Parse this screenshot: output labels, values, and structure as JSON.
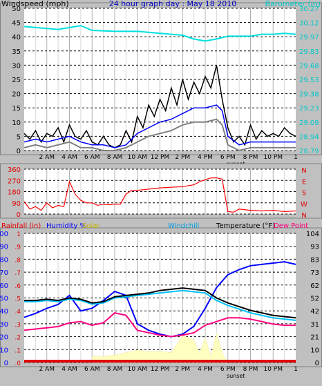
{
  "chart_data": [
    {
      "type": "line",
      "title": "24 hour graph day : May 18 2010",
      "ylabel": "Windspeed (mph)",
      "y2label": "Barometer (in)",
      "x_ticks": [
        "2 AM",
        "4 AM",
        "6 AM",
        "8 AM",
        "10 AM",
        "12 PM",
        "2 PM",
        "4 PM",
        "6 PM",
        "8 PM",
        "10 PM"
      ],
      "x_hour_range": [
        0,
        24
      ],
      "x_end_label": "1",
      "sunset_label": "sunset",
      "ylim": [
        0,
        50
      ],
      "yticks": [
        "0",
        "5",
        "10",
        "15",
        "20",
        "25",
        "30",
        "35",
        "40",
        "45",
        "50"
      ],
      "y2ticks": [
        "28.79",
        "28.94",
        "29.09",
        "29.23",
        "29.38",
        "29.53",
        "29.68",
        "29.83",
        "29.97",
        "30.12",
        "30.27"
      ],
      "series": [
        {
          "name": "Barometer (in)",
          "color": "#00e0e0",
          "axis": "right",
          "x": [
            0,
            2,
            3,
            5,
            6,
            8,
            10,
            12,
            14,
            15,
            16,
            17,
            18,
            19,
            20,
            21,
            22,
            23,
            24
          ],
          "values": [
            30.08,
            30.06,
            30.05,
            30.09,
            30.04,
            30.03,
            30.03,
            30.01,
            29.99,
            29.95,
            29.93,
            29.95,
            29.98,
            29.98,
            29.98,
            30.0,
            30.0,
            30.01,
            30.0
          ]
        },
        {
          "name": "Windspeed high",
          "color": "#000000",
          "axis": "left",
          "x": [
            0,
            0.5,
            1,
            1.5,
            2,
            2.5,
            3,
            3.5,
            4,
            4.5,
            5,
            5.5,
            6,
            6.5,
            7,
            7.5,
            8,
            8.5,
            9,
            9.5,
            10,
            10.5,
            11,
            11.5,
            12,
            12.5,
            13,
            13.5,
            14,
            14.5,
            15,
            15.5,
            16,
            16.5,
            17,
            17.5,
            18,
            18.5,
            19,
            19.5,
            20,
            20.5,
            21,
            21.5,
            22,
            22.5,
            23,
            23.5,
            24
          ],
          "values": [
            6,
            4,
            7,
            3,
            6,
            5,
            8,
            3,
            9,
            5,
            4,
            7,
            3,
            2,
            5,
            2,
            1,
            2,
            7,
            3,
            12,
            8,
            16,
            12,
            18,
            14,
            22,
            16,
            25,
            18,
            24,
            20,
            26,
            22,
            30,
            18,
            8,
            3,
            5,
            2,
            9,
            4,
            7,
            5,
            6,
            5,
            8,
            6,
            5
          ]
        },
        {
          "name": "Windspeed average",
          "color": "#0000ff",
          "axis": "left",
          "x": [
            0,
            1,
            2,
            3,
            4,
            5,
            6,
            7,
            8,
            9,
            10,
            11,
            12,
            13,
            14,
            15,
            16,
            17,
            17.5,
            18,
            19,
            20,
            21,
            22,
            23,
            24
          ],
          "values": [
            3,
            4,
            3,
            4,
            5,
            3,
            2,
            2,
            1,
            2,
            6,
            8,
            10,
            11,
            13,
            15,
            15,
            16,
            14,
            5,
            2,
            3,
            3,
            3,
            3,
            3
          ]
        },
        {
          "name": "Windspeed low",
          "color": "#808080",
          "axis": "left",
          "x": [
            0,
            1,
            2,
            3,
            4,
            5,
            6,
            7,
            8,
            9,
            10,
            11,
            12,
            13,
            14,
            15,
            16,
            17,
            17.5,
            18,
            19,
            20,
            21,
            22,
            23,
            24
          ],
          "values": [
            1,
            2,
            1,
            2,
            3,
            1,
            1,
            0,
            0,
            1,
            3,
            5,
            6,
            7,
            9,
            10,
            10,
            11,
            9,
            2,
            0,
            1,
            1,
            1,
            1,
            1
          ]
        }
      ]
    },
    {
      "type": "line",
      "ylabel_ticks": [
        "0",
        "90",
        "180",
        "270",
        "360"
      ],
      "ylim": [
        0,
        360
      ],
      "direction_labels": [
        "N",
        "W",
        "S",
        "E",
        "N"
      ],
      "series": [
        {
          "name": "Wind direction",
          "color": "#ff0000",
          "x": [
            0,
            0.5,
            1,
            1.5,
            2,
            2.5,
            3,
            3.5,
            4,
            4.5,
            5,
            5.5,
            6,
            6.5,
            7,
            7.5,
            8,
            8.5,
            9,
            9.5,
            10,
            11,
            12,
            13,
            14,
            15,
            15.5,
            16,
            16.5,
            17,
            17.5,
            18,
            18.5,
            19,
            20,
            21,
            22,
            23,
            24
          ],
          "values": [
            100,
            40,
            60,
            30,
            90,
            50,
            70,
            60,
            260,
            160,
            110,
            90,
            90,
            70,
            80,
            75,
            80,
            80,
            160,
            190,
            190,
            200,
            210,
            215,
            220,
            235,
            260,
            275,
            290,
            290,
            280,
            20,
            15,
            40,
            30,
            25,
            30,
            20,
            25
          ]
        }
      ]
    },
    {
      "type": "line",
      "legend": [
        "Rainfall (in)",
        "Humidity %",
        "Solar",
        "Windchill",
        "Temperature (°F)",
        "Dew Point"
      ],
      "left_axis_ticks": [
        "0",
        "10",
        "20",
        "30",
        "40",
        "50",
        "60",
        "70",
        "80",
        "90",
        "100"
      ],
      "rain_axis_ticks": [
        ".0",
        ".1",
        ".2",
        ".3",
        ".4",
        ".5",
        ".6",
        ".7",
        ".8",
        ".9",
        "1"
      ],
      "right_axis_ticks": [
        "0",
        "10",
        "21",
        "31",
        "42",
        "52",
        "62",
        "73",
        "83",
        "93",
        "104"
      ],
      "right_ylim": [
        0,
        104
      ],
      "x_ticks": [
        "2 AM",
        "4 AM",
        "6 AM",
        "8 AM",
        "10 AM",
        "12 PM",
        "2 PM",
        "4 PM",
        "6 PM",
        "8 PM",
        "10 PM"
      ],
      "x_end_label": "1",
      "sunset_label": "sunset",
      "series": [
        {
          "name": "Humidity %",
          "color": "#0000ff",
          "axis": "left",
          "x": [
            0,
            1,
            2,
            3,
            4,
            5,
            6,
            7,
            8,
            9,
            10,
            11,
            12,
            13,
            14,
            15,
            16,
            17,
            18,
            19,
            20,
            21,
            22,
            23,
            24
          ],
          "values": [
            35,
            38,
            42,
            45,
            52,
            40,
            42,
            48,
            55,
            52,
            30,
            25,
            22,
            20,
            22,
            28,
            42,
            58,
            68,
            72,
            75,
            76,
            77,
            78,
            76
          ]
        },
        {
          "name": "Temperature (°F)",
          "color": "#000000",
          "axis": "right",
          "x": [
            0,
            1,
            2,
            3,
            4,
            5,
            6,
            7,
            8,
            9,
            10,
            11,
            12,
            13,
            14,
            15,
            16,
            17,
            18,
            19,
            20,
            21,
            22,
            23,
            24
          ],
          "values": [
            50,
            50,
            51,
            50,
            52,
            51,
            48,
            49,
            53,
            54,
            55,
            56,
            58,
            59,
            60,
            59,
            58,
            52,
            48,
            45,
            42,
            40,
            38,
            37,
            36
          ]
        },
        {
          "name": "Windchill",
          "color": "#00c0ff",
          "axis": "right",
          "x": [
            0,
            1,
            2,
            3,
            4,
            5,
            6,
            7,
            8,
            9,
            10,
            11,
            12,
            13,
            14,
            15,
            16,
            17,
            18,
            19,
            20,
            21,
            22,
            23,
            24
          ],
          "values": [
            49,
            49,
            50,
            49,
            51,
            50,
            47,
            48,
            52,
            53,
            54,
            55,
            56,
            57,
            58,
            57,
            56,
            50,
            46,
            43,
            40,
            38,
            36,
            35,
            34
          ]
        },
        {
          "name": "Dew Point",
          "color": "#ff0080",
          "axis": "right",
          "x": [
            0,
            1,
            2,
            3,
            4,
            5,
            6,
            7,
            8,
            9,
            10,
            11,
            12,
            13,
            14,
            15,
            16,
            17,
            18,
            19,
            20,
            21,
            22,
            23,
            24
          ],
          "values": [
            26,
            27,
            28,
            29,
            32,
            33,
            30,
            32,
            40,
            38,
            26,
            24,
            22,
            21,
            22,
            24,
            30,
            33,
            36,
            36,
            35,
            33,
            31,
            30,
            30
          ]
        },
        {
          "name": "Solar",
          "color": "#ffffc0",
          "axis": "right",
          "x": [
            6,
            7,
            8,
            9,
            10,
            11,
            12,
            13,
            14,
            15,
            15.5,
            16,
            16.5,
            17,
            17.5,
            18
          ],
          "values": [
            5,
            5,
            6,
            8,
            10,
            9,
            9,
            8,
            22,
            18,
            8,
            20,
            5,
            24,
            8,
            0
          ]
        },
        {
          "name": "Rainfall (in)",
          "color": "#ff0000",
          "axis": "rain",
          "x": [
            0,
            24
          ],
          "values": [
            0,
            0
          ]
        }
      ]
    }
  ]
}
